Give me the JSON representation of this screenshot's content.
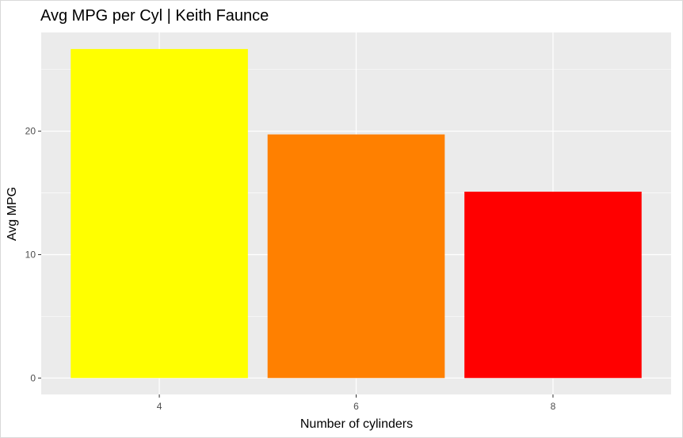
{
  "chart_data": {
    "type": "bar",
    "title": "Avg MPG per Cyl | Keith Faunce",
    "xlabel": "Number of cylinders",
    "ylabel": "Avg MPG",
    "categories": [
      "4",
      "6",
      "8"
    ],
    "x_values": [
      4,
      6,
      8
    ],
    "xlim": [
      2.8,
      9.2
    ],
    "x_ticks": [
      "4",
      "6",
      "8"
    ],
    "values": [
      26.66,
      19.74,
      15.1
    ],
    "colors": [
      "#FFFF00",
      "#FF8000",
      "#FF0000"
    ],
    "ylim": [
      -1.33,
      28.0
    ],
    "y_ticks": [
      "0",
      "10",
      "20"
    ],
    "y_tick_values": [
      0,
      10,
      20
    ],
    "panel_background": "#EBEBEB",
    "grid": true,
    "grid_color": "#FFFFFF",
    "legend": "none"
  }
}
